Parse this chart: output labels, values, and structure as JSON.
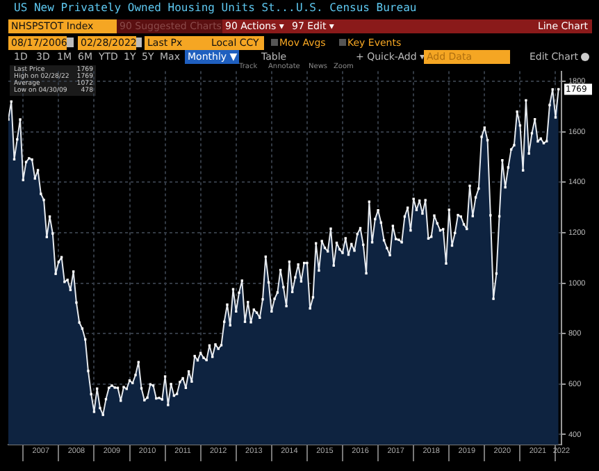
{
  "chart_data": {
    "type": "area",
    "title": "US New Privately Owned Housing Units St...",
    "subtitle": "U.S. Census Bureau",
    "x": [
      "2006-08",
      "2006-09",
      "2006-10",
      "2006-11",
      "2006-12",
      "2007-01",
      "2007-02",
      "2007-03",
      "2007-04",
      "2007-05",
      "2007-06",
      "2007-07",
      "2007-08",
      "2007-09",
      "2007-10",
      "2007-11",
      "2007-12",
      "2008-01",
      "2008-02",
      "2008-03",
      "2008-04",
      "2008-05",
      "2008-06",
      "2008-07",
      "2008-08",
      "2008-09",
      "2008-10",
      "2008-11",
      "2008-12",
      "2009-01",
      "2009-02",
      "2009-03",
      "2009-04",
      "2009-05",
      "2009-06",
      "2009-07",
      "2009-08",
      "2009-09",
      "2009-10",
      "2009-11",
      "2009-12",
      "2010-01",
      "2010-02",
      "2010-03",
      "2010-04",
      "2010-05",
      "2010-06",
      "2010-07",
      "2010-08",
      "2010-09",
      "2010-10",
      "2010-11",
      "2010-12",
      "2011-01",
      "2011-02",
      "2011-03",
      "2011-04",
      "2011-05",
      "2011-06",
      "2011-07",
      "2011-08",
      "2011-09",
      "2011-10",
      "2011-11",
      "2011-12",
      "2012-01",
      "2012-02",
      "2012-03",
      "2012-04",
      "2012-05",
      "2012-06",
      "2012-07",
      "2012-08",
      "2012-09",
      "2012-10",
      "2012-11",
      "2012-12",
      "2013-01",
      "2013-02",
      "2013-03",
      "2013-04",
      "2013-05",
      "2013-06",
      "2013-07",
      "2013-08",
      "2013-09",
      "2013-10",
      "2013-11",
      "2013-12",
      "2014-01",
      "2014-02",
      "2014-03",
      "2014-04",
      "2014-05",
      "2014-06",
      "2014-07",
      "2014-08",
      "2014-09",
      "2014-10",
      "2014-11",
      "2014-12",
      "2015-01",
      "2015-02",
      "2015-03",
      "2015-04",
      "2015-05",
      "2015-06",
      "2015-07",
      "2015-08",
      "2015-09",
      "2015-10",
      "2015-11",
      "2015-12",
      "2016-01",
      "2016-02",
      "2016-03",
      "2016-04",
      "2016-05",
      "2016-06",
      "2016-07",
      "2016-08",
      "2016-09",
      "2016-10",
      "2016-11",
      "2016-12",
      "2017-01",
      "2017-02",
      "2017-03",
      "2017-04",
      "2017-05",
      "2017-06",
      "2017-07",
      "2017-08",
      "2017-09",
      "2017-10",
      "2017-11",
      "2017-12",
      "2018-01",
      "2018-02",
      "2018-03",
      "2018-04",
      "2018-05",
      "2018-06",
      "2018-07",
      "2018-08",
      "2018-09",
      "2018-10",
      "2018-11",
      "2018-12",
      "2019-01",
      "2019-02",
      "2019-03",
      "2019-04",
      "2019-05",
      "2019-06",
      "2019-07",
      "2019-08",
      "2019-09",
      "2019-10",
      "2019-11",
      "2019-12",
      "2020-01",
      "2020-02",
      "2020-03",
      "2020-04",
      "2020-05",
      "2020-06",
      "2020-07",
      "2020-08",
      "2020-09",
      "2020-10",
      "2020-11",
      "2020-12",
      "2021-01",
      "2021-02",
      "2021-03",
      "2021-04",
      "2021-05",
      "2021-06",
      "2021-07",
      "2021-08",
      "2021-09",
      "2021-10",
      "2021-11",
      "2021-12",
      "2022-01",
      "2022-02"
    ],
    "series": [
      {
        "color": "#0e2340",
        "values": [
          1649,
          1720,
          1491,
          1570,
          1649,
          1409,
          1480,
          1495,
          1490,
          1415,
          1448,
          1354,
          1330,
          1183,
          1264,
          1197,
          1037,
          1084,
          1103,
          1005,
          1013,
          973,
          1046,
          923,
          844,
          820,
          777,
          652,
          560,
          490,
          582,
          505,
          478,
          540,
          585,
          594,
          586,
          585,
          534,
          588,
          581,
          614,
          604,
          636,
          687,
          583,
          536,
          546,
          599,
          594,
          543,
          545,
          539,
          630,
          517,
          600,
          554,
          561,
          608,
          623,
          585,
          650,
          610,
          711,
          694,
          723,
          704,
          695,
          753,
          708,
          757,
          740,
          754,
          847,
          915,
          833,
          976,
          888,
          962,
          1010,
          847,
          925,
          845,
          895,
          883,
          863,
          936,
          1105,
          1003,
          888,
          938,
          963,
          1052,
          984,
          909,
          1085,
          965,
          1023,
          1074,
          1007,
          1080,
          1080,
          900,
          944,
          1158,
          1050,
          1167,
          1140,
          1126,
          1216,
          1070,
          1160,
          1134,
          1120,
          1178,
          1113,
          1155,
          1129,
          1195,
          1218,
          1152,
          1039,
          1323,
          1162,
          1254,
          1289,
          1240,
          1170,
          1139,
          1111,
          1227,
          1175,
          1172,
          1162,
          1264,
          1299,
          1209,
          1334,
          1290,
          1327,
          1276,
          1329,
          1177,
          1184,
          1268,
          1237,
          1209,
          1214,
          1078,
          1291,
          1149,
          1199,
          1270,
          1264,
          1233,
          1215,
          1386,
          1266,
          1340,
          1375,
          1580,
          1617,
          1567,
          1269,
          938,
          1038,
          1265,
          1487,
          1380,
          1459,
          1530,
          1547,
          1680,
          1625,
          1447,
          1725,
          1514,
          1594,
          1650,
          1562,
          1573,
          1555,
          1563,
          1706,
          1768,
          1657,
          1769
        ]
      }
    ],
    "xlim": [
      "2006-08",
      "2022-03"
    ],
    "xticks": [
      {
        "value": "2007-01",
        "label": null
      },
      {
        "value": "2007-07",
        "label": "2007"
      },
      {
        "value": "2008-01",
        "label": null
      },
      {
        "value": "2008-07",
        "label": "2008"
      },
      {
        "value": "2009-01",
        "label": null
      },
      {
        "value": "2009-07",
        "label": "2009"
      },
      {
        "value": "2010-01",
        "label": null
      },
      {
        "value": "2010-07",
        "label": "2010"
      },
      {
        "value": "2011-01",
        "label": null
      },
      {
        "value": "2011-07",
        "label": "2011"
      },
      {
        "value": "2012-01",
        "label": null
      },
      {
        "value": "2012-07",
        "label": "2012"
      },
      {
        "value": "2013-01",
        "label": null
      },
      {
        "value": "2013-07",
        "label": "2013"
      },
      {
        "value": "2014-01",
        "label": null
      },
      {
        "value": "2014-07",
        "label": "2014"
      },
      {
        "value": "2015-01",
        "label": null
      },
      {
        "value": "2015-07",
        "label": "2015"
      },
      {
        "value": "2016-01",
        "label": null
      },
      {
        "value": "2016-07",
        "label": "2016"
      },
      {
        "value": "2017-01",
        "label": null
      },
      {
        "value": "2017-07",
        "label": "2017"
      },
      {
        "value": "2018-01",
        "label": null
      },
      {
        "value": "2018-07",
        "label": "2018"
      },
      {
        "value": "2019-01",
        "label": null
      },
      {
        "value": "2019-07",
        "label": "2019"
      },
      {
        "value": "2020-01",
        "label": null
      },
      {
        "value": "2020-07",
        "label": "2020"
      },
      {
        "value": "2021-01",
        "label": null
      },
      {
        "value": "2021-07",
        "label": "2021"
      },
      {
        "value": "2022-01",
        "label": null
      },
      {
        "value": "2022-03",
        "label": "2022"
      }
    ],
    "ylim": [
      360,
      1840
    ],
    "yticks": [
      400,
      600,
      800,
      1000,
      1200,
      1400,
      1600,
      1800
    ],
    "grid": true,
    "legend": false,
    "marker": "square",
    "line_style": "solid",
    "annotations": [
      "NHSPSTOT Index",
      "90 Suggested Charts",
      "90 Actions ▾",
      "97 Edit ▾",
      "Line Chart",
      "08/17/2006",
      "02/28/2022",
      "Last Px",
      "Local CCY",
      "Mov Avgs",
      "Key Events",
      "1D",
      "3D",
      "1M",
      "6M",
      "YTD",
      "1Y",
      "5Y",
      "Max",
      "Monthly ▼",
      "Table",
      "+ Quick-Add ▾",
      "Add Data",
      "Edit Chart",
      "Track",
      "Annotate",
      "News",
      "Zoom",
      "Last Price",
      "1769",
      "High on 02/28/22",
      "1769",
      "Average",
      "1072",
      "Low on 04/30/09",
      "478",
      {
        "text": "1769",
        "x": "2022-02",
        "y": 1769
      }
    ]
  }
}
